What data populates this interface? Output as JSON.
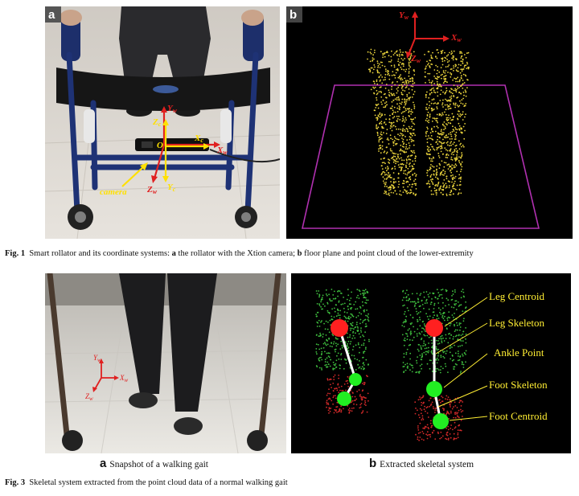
{
  "fig1": {
    "panel_a": {
      "letter": "a",
      "labels": {
        "yw": "Y",
        "yw_sub": "w",
        "zc": "Z",
        "zc_sub": "c",
        "xc": "X",
        "xc_sub": "c",
        "o": "O",
        "xw": "X",
        "xw_sub": "w",
        "camera": "camera",
        "zw": "Z",
        "zw_sub": "w",
        "yc": "Y",
        "yc_sub": "c"
      }
    },
    "panel_b": {
      "letter": "b",
      "labels": {
        "yw": "Y",
        "yw_sub": "w",
        "xw": "X",
        "xw_sub": "w",
        "zw": "Z",
        "zw_sub": "w"
      }
    },
    "caption": {
      "prefix": "Fig. 1",
      "text": "Smart rollator and its coordinate systems:",
      "a": "a",
      "a_text": "the rollator with the Xtion camera;",
      "b": "b",
      "b_text": "floor plane and point cloud of the lower-extremity"
    }
  },
  "fig3": {
    "panel_a": {
      "axes": {
        "yw": "Y",
        "yw_sub": "w",
        "xw": "X",
        "xw_sub": "w",
        "zw": "Z",
        "zw_sub": "w"
      },
      "sub_letter": "a",
      "sub_text": "Snapshot of a walking gait"
    },
    "panel_b": {
      "labels": [
        "Leg Centroid",
        "Leg Skeleton",
        "Ankle Point",
        "Foot Skeleton",
        "Foot Centroid"
      ],
      "sub_letter": "b",
      "sub_text": "Extracted skeletal system"
    },
    "caption": {
      "prefix": "Fig. 3",
      "text": "Skeletal system extracted from the point cloud data of a normal walking gait"
    }
  },
  "colors": {
    "point_yellow": "#e8d23c",
    "point_green": "#3fbf3f",
    "point_red": "#d42a2a",
    "node_red": "#ff2020",
    "node_green": "#22ee22",
    "label_yellow": "#ffee33",
    "plane_magenta": "#b030b0",
    "axis_red": "#e02020"
  }
}
